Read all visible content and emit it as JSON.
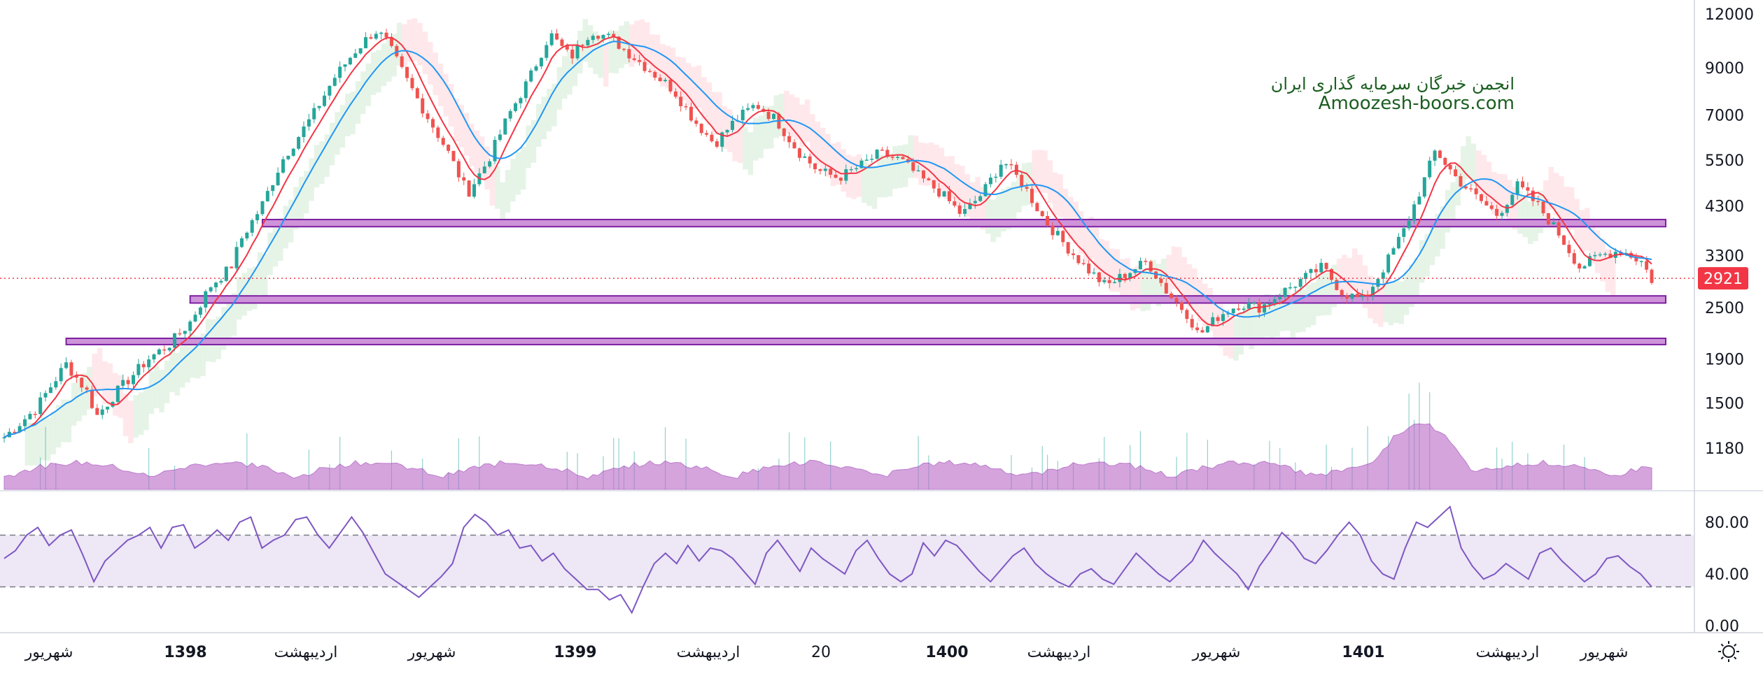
{
  "chart_data": [
    {
      "type": "candlestick",
      "title": "",
      "watermark": {
        "line1": "انجمن خبرگان سرمایه گذاری ایران",
        "line2": "Amoozesh-boors.com"
      },
      "last_price": "2921",
      "colors": {
        "up": "#26a69a",
        "down": "#ef5350",
        "ma_fast": "#f23645",
        "ma_slow": "#2196f3",
        "zone_fill": "#ce93d8",
        "zone_border": "#7b1fa2",
        "volume_area": "#ba68c8",
        "last_price": "#f23645",
        "cloud_green": "#c8e6c9",
        "cloud_red": "#ffcdd2"
      },
      "y_axis": {
        "scale": "log",
        "range": [
          1050,
          12000
        ],
        "ticks": [
          "12000",
          "9000",
          "7000",
          "5500",
          "4300",
          "3300",
          "2500",
          "1900",
          "1500",
          "1180"
        ],
        "tick_values": [
          12000,
          9000,
          7000,
          5500,
          4300,
          3300,
          2500,
          1900,
          1500,
          1180
        ]
      },
      "x_axis": {
        "ticks": [
          {
            "label": "شهریور",
            "bold": false
          },
          {
            "label": "1398",
            "bold": true
          },
          {
            "label": "اردیبهشت",
            "bold": false
          },
          {
            "label": "شهریور",
            "bold": false
          },
          {
            "label": "1399",
            "bold": true
          },
          {
            "label": "اردیبهشت",
            "bold": false
          },
          {
            "label": "20",
            "bold": false
          },
          {
            "label": "1400",
            "bold": true
          },
          {
            "label": "اردیبهشت",
            "bold": false
          },
          {
            "label": "شهریور",
            "bold": false
          },
          {
            "label": "1401",
            "bold": true
          },
          {
            "label": "اردیبهشت",
            "bold": false
          },
          {
            "label": "شهریور",
            "bold": false
          }
        ]
      },
      "support_resistance_zones": [
        {
          "low": 3850,
          "high": 4000,
          "from_index": 25
        },
        {
          "low": 2560,
          "high": 2660,
          "from_index": 18
        },
        {
          "low": 2050,
          "high": 2120,
          "from_index": 6
        }
      ],
      "price_path": [
        {
          "i": 0,
          "close": 1250
        },
        {
          "i": 3,
          "close": 1450
        },
        {
          "i": 6,
          "close": 1850
        },
        {
          "i": 8,
          "close": 1600
        },
        {
          "i": 9,
          "close": 1400
        },
        {
          "i": 11,
          "close": 1600
        },
        {
          "i": 14,
          "close": 1900
        },
        {
          "i": 16,
          "close": 2050
        },
        {
          "i": 18,
          "close": 2300
        },
        {
          "i": 20,
          "close": 2800
        },
        {
          "i": 22,
          "close": 3100
        },
        {
          "i": 23,
          "close": 3600
        },
        {
          "i": 25,
          "close": 4300
        },
        {
          "i": 27,
          "close": 5500
        },
        {
          "i": 30,
          "close": 7000
        },
        {
          "i": 32,
          "close": 8500
        },
        {
          "i": 34,
          "close": 9800
        },
        {
          "i": 36,
          "close": 11000
        },
        {
          "i": 37,
          "close": 10500
        },
        {
          "i": 39,
          "close": 8500
        },
        {
          "i": 41,
          "close": 7000
        },
        {
          "i": 43,
          "close": 5800
        },
        {
          "i": 45,
          "close": 4600
        },
        {
          "i": 47,
          "close": 5500
        },
        {
          "i": 49,
          "close": 7000
        },
        {
          "i": 51,
          "close": 8500
        },
        {
          "i": 53,
          "close": 10800
        },
        {
          "i": 55,
          "close": 9500
        },
        {
          "i": 57,
          "close": 11000
        },
        {
          "i": 59,
          "close": 10500
        },
        {
          "i": 65,
          "close": 8000
        },
        {
          "i": 67,
          "close": 6800
        },
        {
          "i": 69,
          "close": 6000
        },
        {
          "i": 71,
          "close": 6800
        },
        {
          "i": 73,
          "close": 7400
        },
        {
          "i": 75,
          "close": 6800
        },
        {
          "i": 77,
          "close": 5800
        },
        {
          "i": 79,
          "close": 5200
        },
        {
          "i": 81,
          "close": 5000
        },
        {
          "i": 83,
          "close": 5300
        },
        {
          "i": 85,
          "close": 5700
        },
        {
          "i": 87,
          "close": 5500
        },
        {
          "i": 89,
          "close": 5000
        },
        {
          "i": 91,
          "close": 4600
        },
        {
          "i": 93,
          "close": 4100
        },
        {
          "i": 95,
          "close": 4600
        },
        {
          "i": 97,
          "close": 5500
        },
        {
          "i": 99,
          "close": 4800
        },
        {
          "i": 101,
          "close": 4000
        },
        {
          "i": 103,
          "close": 3500
        },
        {
          "i": 105,
          "close": 3100
        },
        {
          "i": 107,
          "close": 2800
        },
        {
          "i": 109,
          "close": 3000
        },
        {
          "i": 111,
          "close": 3200
        },
        {
          "i": 113,
          "close": 2700
        },
        {
          "i": 115,
          "close": 2400
        },
        {
          "i": 116,
          "close": 2150
        },
        {
          "i": 118,
          "close": 2400
        },
        {
          "i": 120,
          "close": 2550
        },
        {
          "i": 122,
          "close": 2500
        },
        {
          "i": 124,
          "close": 2700
        },
        {
          "i": 126,
          "close": 2900
        },
        {
          "i": 128,
          "close": 3100
        },
        {
          "i": 130,
          "close": 2700
        },
        {
          "i": 132,
          "close": 2600
        },
        {
          "i": 134,
          "close": 3100
        },
        {
          "i": 136,
          "close": 3800
        },
        {
          "i": 138,
          "close": 5000
        },
        {
          "i": 139,
          "close": 5800
        },
        {
          "i": 141,
          "close": 5000
        },
        {
          "i": 143,
          "close": 4500
        },
        {
          "i": 145,
          "close": 4100
        },
        {
          "i": 147,
          "close": 4800
        },
        {
          "i": 149,
          "close": 4300
        },
        {
          "i": 151,
          "close": 3700
        },
        {
          "i": 153,
          "close": 3100
        },
        {
          "i": 155,
          "close": 3300
        },
        {
          "i": 157,
          "close": 3400
        },
        {
          "i": 159,
          "close": 3200
        },
        {
          "i": 160,
          "close": 2900
        }
      ]
    },
    {
      "type": "line",
      "title": "",
      "y_axis": {
        "range": [
          0,
          100
        ],
        "ticks": [
          "80.00",
          "40.00",
          "0.00"
        ],
        "tick_values": [
          80,
          40,
          0
        ]
      },
      "bands": {
        "upper": 70,
        "lower": 30
      },
      "colors": {
        "line": "#7e57c2",
        "band_fill": "#ede7f6",
        "band_lines": "#787b86"
      },
      "series": [
        {
          "values": [
            52,
            58,
            70,
            76,
            62,
            70,
            74,
            55,
            34,
            50,
            58,
            66,
            70,
            76,
            60,
            76,
            78,
            60,
            66,
            74,
            66,
            80,
            84,
            60,
            66,
            70,
            82,
            84,
            70,
            60,
            72,
            84,
            72,
            56,
            40,
            34,
            28,
            22,
            30,
            38,
            48,
            76,
            86,
            80,
            70,
            74,
            60,
            62,
            50,
            56,
            44,
            36,
            28,
            28,
            20,
            24,
            10,
            30,
            48,
            56,
            48,
            62,
            50,
            60,
            58,
            52,
            42,
            32,
            56,
            66,
            54,
            42,
            60,
            52,
            46,
            40,
            58,
            66,
            52,
            40,
            34,
            40,
            64,
            54,
            66,
            62,
            52,
            42,
            34,
            44,
            54,
            60,
            48,
            40,
            34,
            30,
            40,
            44,
            36,
            32,
            44,
            56,
            48,
            40,
            34,
            42,
            50,
            66,
            56,
            48,
            40,
            28,
            46,
            58,
            72,
            64,
            52,
            48,
            58,
            70,
            80,
            70,
            50,
            40,
            36,
            60,
            80,
            76,
            84,
            92,
            60,
            46,
            36,
            40,
            48,
            42,
            36,
            56,
            60,
            50,
            42,
            34,
            40,
            52,
            54,
            46,
            40,
            30
          ]
        }
      ]
    }
  ],
  "toolbar": {
    "settings_icon": "sun-gear-icon"
  }
}
